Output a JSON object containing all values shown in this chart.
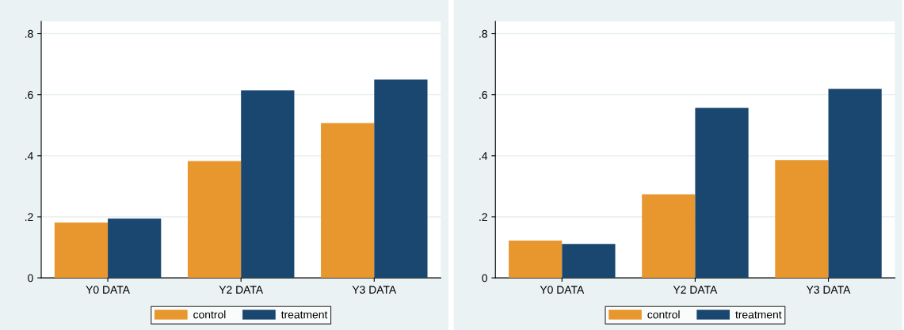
{
  "chart_data": [
    {
      "type": "bar",
      "categories": [
        "Y0 DATA",
        "Y2 DATA",
        "Y3 DATA"
      ],
      "series": [
        {
          "name": "control",
          "color": "#e8972f",
          "values": [
            0.181,
            0.383,
            0.507
          ]
        },
        {
          "name": "treatment",
          "color": "#1a476f",
          "values": [
            0.194,
            0.614,
            0.65
          ]
        }
      ],
      "ylim": [
        0,
        0.84
      ],
      "yticks": [
        0,
        {
          "value": 0.2,
          "label": ".2"
        },
        {
          "value": 0.4,
          "label": ".4"
        },
        {
          "value": 0.6,
          "label": ".6"
        },
        {
          "value": 0.8,
          "label": ".8"
        }
      ],
      "grid": "y",
      "legend": "bottom"
    },
    {
      "type": "bar",
      "categories": [
        "Y0 DATA",
        "Y2 DATA",
        "Y3 DATA"
      ],
      "series": [
        {
          "name": "control",
          "color": "#e8972f",
          "values": [
            0.122,
            0.274,
            0.386
          ]
        },
        {
          "name": "treatment",
          "color": "#1a476f",
          "values": [
            0.111,
            0.557,
            0.619
          ]
        }
      ],
      "ylim": [
        0,
        0.84
      ],
      "yticks": [
        0,
        {
          "value": 0.2,
          "label": ".2"
        },
        {
          "value": 0.4,
          "label": ".4"
        },
        {
          "value": 0.6,
          "label": ".6"
        },
        {
          "value": 0.8,
          "label": ".8"
        }
      ],
      "grid": "y",
      "legend": "bottom"
    }
  ]
}
